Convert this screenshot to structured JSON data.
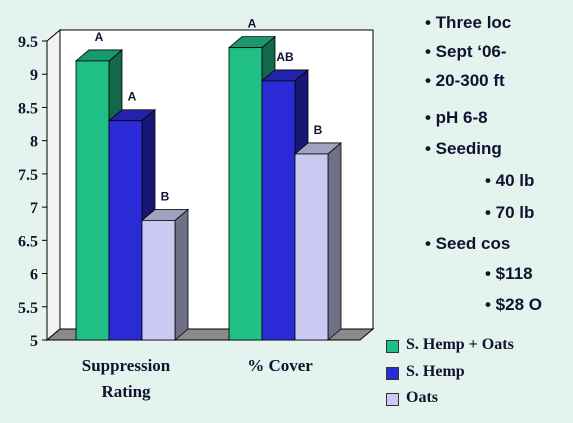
{
  "bullets": [
    {
      "text": "• Three loc"
    },
    {
      "text": "• Sept ‘06-"
    },
    {
      "text": "• 20-300 ft"
    },
    {
      "text": "• pH 6-8"
    },
    {
      "text": "• Seeding"
    },
    {
      "text": "• 40 lb"
    },
    {
      "text": "• 70 lb"
    },
    {
      "text": "• Seed cos"
    },
    {
      "text": "• $118"
    },
    {
      "text": "• $28 O"
    }
  ],
  "colors": {
    "background": "#e4f3ed",
    "text": "#0e1330",
    "series": [
      "#1fbf86",
      "#2a2ad6",
      "#c9c9f2"
    ]
  },
  "chart_data": {
    "type": "bar",
    "style": "3d-clustered-column",
    "categories": [
      "Suppression Rating",
      "% Cover"
    ],
    "category_lines": [
      [
        "Suppression",
        "Rating"
      ],
      [
        "% Cover"
      ]
    ],
    "series": [
      {
        "name": "S. Hemp + Oats",
        "values": [
          9.2,
          9.4
        ],
        "labels": [
          "A",
          "A"
        ]
      },
      {
        "name": "S. Hemp",
        "values": [
          8.3,
          8.9
        ],
        "labels": [
          "A",
          "AB"
        ]
      },
      {
        "name": "Oats",
        "values": [
          6.8,
          7.8
        ],
        "labels": [
          "B",
          "B"
        ]
      }
    ],
    "yticks": [
      "5",
      "5.5",
      "6",
      "6.5",
      "7",
      "7.5",
      "8",
      "8.5",
      "9",
      "9.5"
    ],
    "ylim": [
      5,
      9.5
    ],
    "grid": false,
    "legend": "bottom-right"
  }
}
